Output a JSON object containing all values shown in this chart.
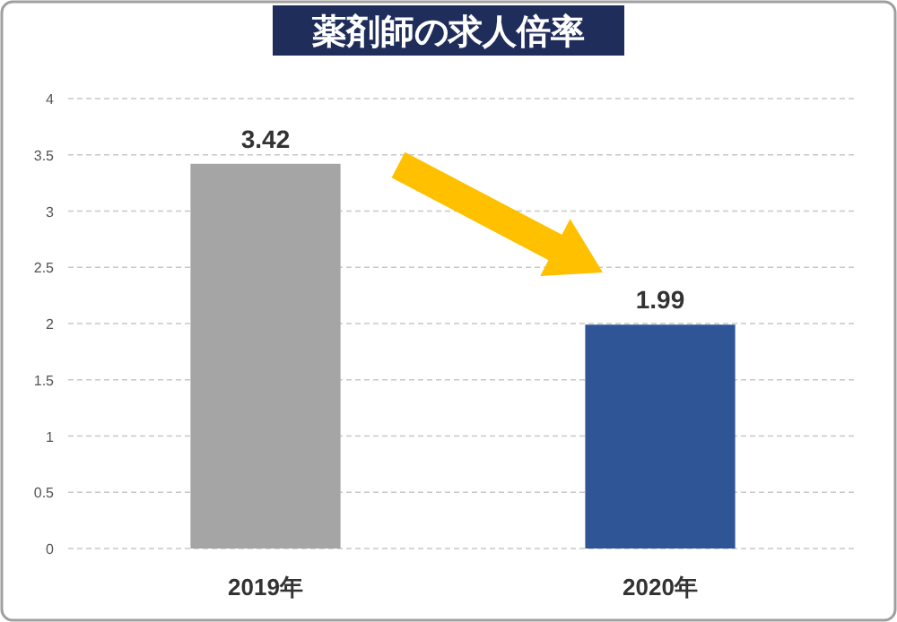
{
  "chart_data": {
    "type": "bar",
    "title": "薬剤師の求人倍率",
    "categories": [
      "2019年",
      "2020年"
    ],
    "values": [
      3.42,
      1.99
    ],
    "colors": [
      "#a5a5a5",
      "#2f5597"
    ],
    "ylim": [
      0,
      4
    ],
    "yticks": [
      0,
      0.5,
      1,
      1.5,
      2,
      2.5,
      3,
      3.5,
      4
    ],
    "grid": "y",
    "data_labels": true
  }
}
